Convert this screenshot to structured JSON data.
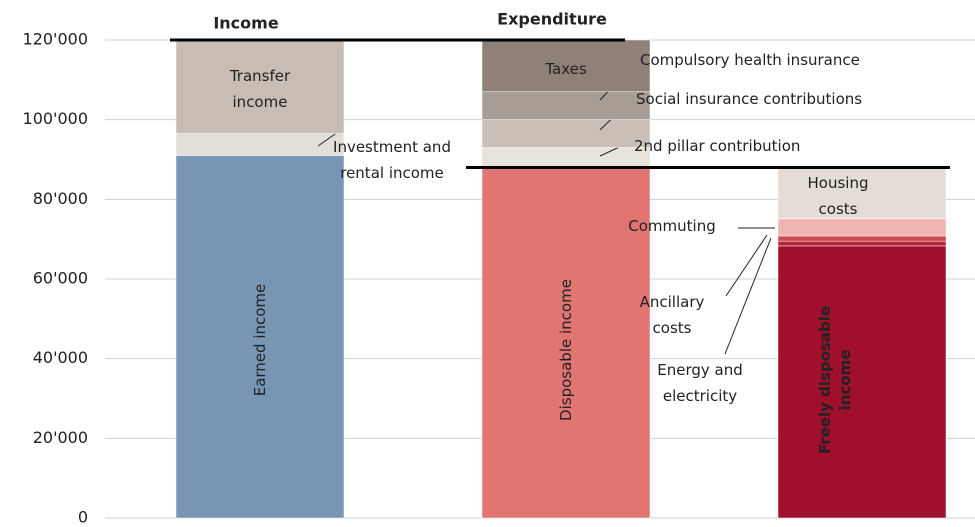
{
  "chart_data": {
    "type": "stacked_waterfall",
    "ylim": [
      0,
      120000
    ],
    "yticks": [
      0,
      {
        "value": 20000,
        "label": "20'000"
      },
      {
        "value": 40000,
        "label": "40'000"
      },
      {
        "value": 60000,
        "label": "60'000"
      },
      {
        "value": 80000,
        "label": "80'000"
      },
      {
        "value": 100000,
        "label": "100'000"
      },
      {
        "value": 120000,
        "label": "120'000"
      }
    ],
    "grid": true,
    "bars": [
      {
        "label": "Income",
        "segments": [
          {
            "name": "Earned income",
            "value": 91000,
            "color": "#7896b4"
          },
          {
            "name": "Investment and rental income",
            "value": 5500,
            "color": "#e3ded8"
          },
          {
            "name": "Transfer income",
            "value": 23500,
            "color": "#c8bdb5"
          }
        ]
      },
      {
        "label": "Expenditure",
        "segments": [
          {
            "name": "Disposable income",
            "value": 88000,
            "color": "#e07572"
          },
          {
            "name": "2nd pillar contribution",
            "value": 5000,
            "color": "#e8e3dd"
          },
          {
            "name": "Social insurance contributions",
            "value": 7000,
            "color": "#c9bfb7"
          },
          {
            "name": "Compulsory health insurance",
            "value": 7000,
            "color": "#a89d94"
          },
          {
            "name": "Taxes",
            "value": 13000,
            "color": "#8f8177"
          }
        ]
      },
      {
        "label": null,
        "segments": [
          {
            "name": "Freely disposable income",
            "value": 68300,
            "color": "#a0102c"
          },
          {
            "name": "Energy and electricity",
            "value": 1200,
            "color": "#b52636"
          },
          {
            "name": "Ancillary costs",
            "value": 1300,
            "color": "#cc4b52"
          },
          {
            "name": "Commuting",
            "value": 4300,
            "color": "#f0b5b3"
          },
          {
            "name": "Housing costs",
            "value": 12900,
            "color": "#e3ddd6"
          }
        ]
      }
    ]
  }
}
